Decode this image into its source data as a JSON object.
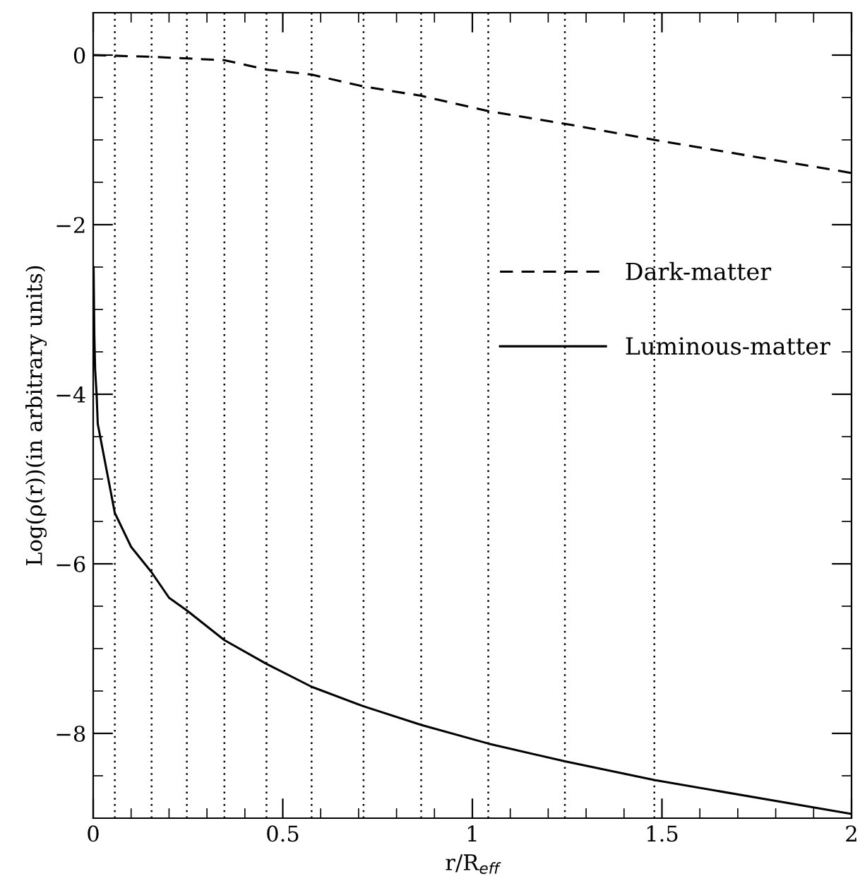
{
  "chart_data": {
    "type": "line",
    "xlabel": "r/R$_{eff}$",
    "ylabel": "Log(ρ(r))(in arbitrary units)",
    "xlim": [
      0,
      2
    ],
    "ylim": [
      -9,
      0.5
    ],
    "xticks": [
      0,
      0.5,
      1,
      1.5,
      2
    ],
    "yticks": [
      -8,
      -6,
      -4,
      -2,
      0
    ],
    "series": [
      {
        "name": "Dark-matter",
        "color": "#000000",
        "line_style": "dashed",
        "x": [
          0,
          0.154,
          0.346,
          0.457,
          0.576,
          0.713,
          0.865,
          1.042,
          1.244,
          1.48,
          2.0
        ],
        "values": [
          0,
          -0.02,
          -0.06,
          -0.17,
          -0.23,
          -0.37,
          -0.48,
          -0.66,
          -0.81,
          -1.0,
          -1.39
        ]
      },
      {
        "name": "Luminous-matter",
        "color": "#000000",
        "line_style": "solid",
        "x": [
          0.001,
          0.003,
          0.005,
          0.009,
          0.012,
          0.057,
          0.1,
          0.154,
          0.2,
          0.247,
          0.346,
          0.457,
          0.576,
          0.713,
          0.865,
          1.042,
          1.244,
          1.48,
          2.0
        ],
        "values": [
          -2.5,
          -3.3,
          -3.7,
          -4.0,
          -4.35,
          -5.4,
          -5.8,
          -6.1,
          -6.4,
          -6.55,
          -6.9,
          -7.18,
          -7.45,
          -7.68,
          -7.9,
          -8.12,
          -8.33,
          -8.55,
          -8.95
        ]
      }
    ],
    "ref_lines": [
      {
        "axis": "x",
        "value": 0.057,
        "line_style": "dotted",
        "color": "#000000"
      },
      {
        "axis": "x",
        "value": 0.154,
        "line_style": "dotted",
        "color": "#000000"
      },
      {
        "axis": "x",
        "value": 0.247,
        "line_style": "dotted",
        "color": "#000000"
      },
      {
        "axis": "x",
        "value": 0.346,
        "line_style": "dotted",
        "color": "#000000"
      },
      {
        "axis": "x",
        "value": 0.457,
        "line_style": "dotted",
        "color": "#000000"
      },
      {
        "axis": "x",
        "value": 0.576,
        "line_style": "dotted",
        "color": "#000000"
      },
      {
        "axis": "x",
        "value": 0.713,
        "line_style": "dotted",
        "color": "#000000"
      },
      {
        "axis": "x",
        "value": 0.865,
        "line_style": "dotted",
        "color": "#000000"
      },
      {
        "axis": "x",
        "value": 1.042,
        "line_style": "dotted",
        "color": "#000000"
      },
      {
        "axis": "x",
        "value": 1.244,
        "line_style": "dotted",
        "color": "#000000"
      },
      {
        "axis": "x",
        "value": 1.48,
        "line_style": "dotted",
        "color": "#000000"
      }
    ],
    "legend": "right",
    "grid": false,
    "marker": "none"
  }
}
